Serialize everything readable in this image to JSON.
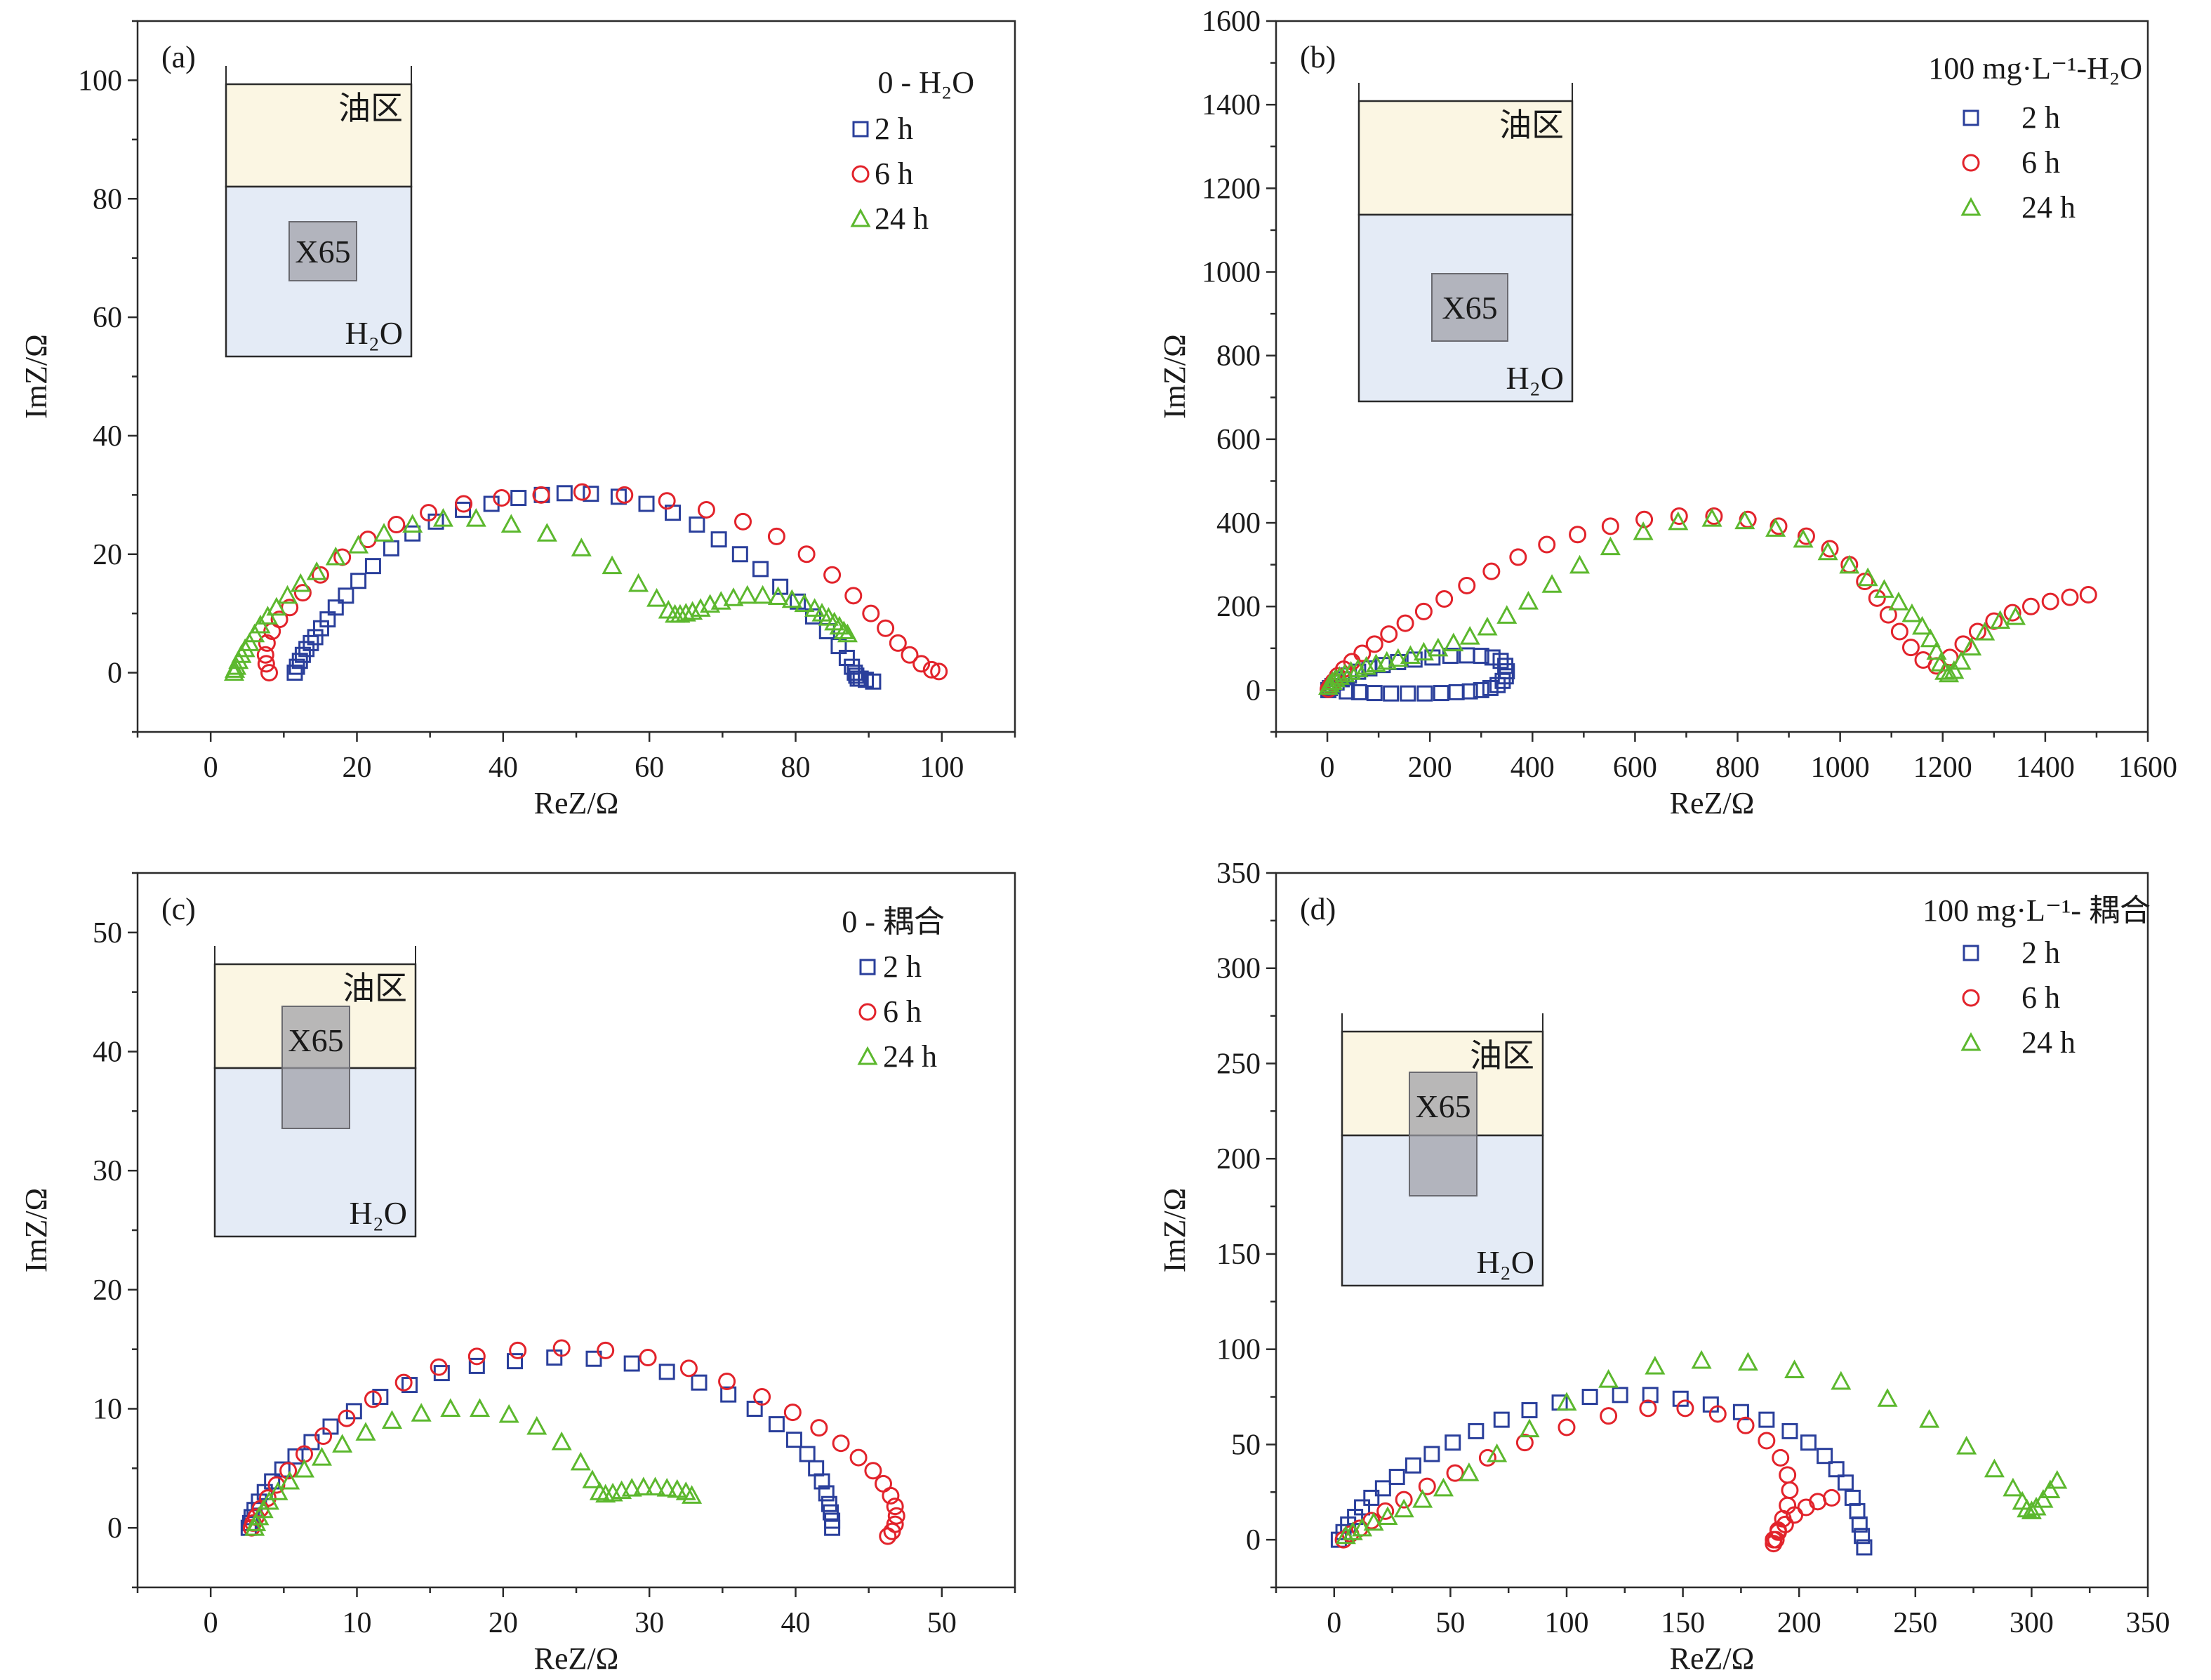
{
  "colors": {
    "s2h": "#2a3f9b",
    "s6h": "#e2232b",
    "s24h": "#5cb82e",
    "oil_fill": "#fbf6e3",
    "water_fill": "#e4ebf6",
    "x65_fill": "#9e9ea6",
    "frame": "#2b2b2b"
  },
  "chart_data": [
    {
      "id": "a",
      "type": "scatter",
      "panel_label": "(a)",
      "legend_title": "0 - H₂O",
      "xlabel": "ReZ/Ω",
      "ylabel": "ImZ/Ω",
      "xlim": [
        -10,
        110
      ],
      "ylim": [
        -10,
        110
      ],
      "xticks": [
        0,
        20,
        40,
        60,
        80,
        100
      ],
      "yticks": [
        0,
        20,
        40,
        60,
        80,
        100
      ],
      "inset": {
        "oil_label": "油区",
        "specimen_label": "X65",
        "water_label": "H₂O",
        "specimen_in_oil": false
      },
      "series": [
        {
          "name": "2 h",
          "marker": "square",
          "color": "s2h",
          "x": [
            11.5,
            11.8,
            12.2,
            12.6,
            13.1,
            13.7,
            14.3,
            15.1,
            16.0,
            17.1,
            18.5,
            20.2,
            22.2,
            24.7,
            27.6,
            30.8,
            34.5,
            38.4,
            42.1,
            45.3,
            48.4,
            52.0,
            55.8,
            59.6,
            63.2,
            66.5,
            69.5,
            72.4,
            75.2,
            77.9,
            80.3,
            82.4,
            84.3,
            85.9,
            87.0,
            87.7,
            88.1,
            88.3,
            88.5,
            88.9,
            89.6,
            90.6
          ],
          "y": [
            0.0,
            1.0,
            2.0,
            3.0,
            4.0,
            5.0,
            6.0,
            7.5,
            9.0,
            11.0,
            13.0,
            15.5,
            18.0,
            21.0,
            23.5,
            25.5,
            27.5,
            28.5,
            29.5,
            30.0,
            30.3,
            30.2,
            29.7,
            28.5,
            27.0,
            25.0,
            22.5,
            20.0,
            17.5,
            14.5,
            12.0,
            9.5,
            7.0,
            4.5,
            2.5,
            1.0,
            0.0,
            -0.5,
            -1.0,
            -1.0,
            -1.2,
            -1.5
          ]
        },
        {
          "name": "6 h",
          "marker": "circle",
          "color": "s6h",
          "x": [
            8.0,
            7.6,
            7.5,
            7.7,
            8.4,
            9.4,
            10.8,
            12.6,
            15.0,
            18.0,
            21.5,
            25.4,
            29.8,
            34.6,
            39.8,
            45.2,
            50.8,
            56.6,
            62.4,
            67.8,
            72.8,
            77.4,
            81.5,
            85.0,
            87.9,
            90.3,
            92.3,
            94.0,
            95.6,
            97.2,
            98.6,
            99.6
          ],
          "y": [
            0.0,
            1.5,
            3.0,
            5.0,
            7.0,
            9.0,
            11.0,
            13.5,
            16.5,
            19.5,
            22.5,
            25.0,
            27.0,
            28.5,
            29.5,
            30.0,
            30.5,
            30.0,
            29.0,
            27.5,
            25.5,
            23.0,
            20.0,
            16.5,
            13.0,
            10.0,
            7.5,
            5.0,
            3.0,
            1.5,
            0.5,
            0.2
          ]
        },
        {
          "name": "24 h",
          "marker": "triangle",
          "color": "s24h",
          "x": [
            3.2,
            3.3,
            3.5,
            3.8,
            4.2,
            4.7,
            5.3,
            6.0,
            6.8,
            7.8,
            9.0,
            10.5,
            12.3,
            14.5,
            17.1,
            20.2,
            23.7,
            27.6,
            31.8,
            36.3,
            41.1,
            46.0,
            50.7,
            54.9,
            58.5,
            61.0,
            62.6,
            63.5,
            64.2,
            65.0,
            65.9,
            67.0,
            68.3,
            69.8,
            71.5,
            73.4,
            75.5,
            77.6,
            79.5,
            81.2,
            82.6,
            83.6,
            84.5,
            85.3,
            86.0,
            86.6,
            87.1
          ],
          "y": [
            0.0,
            0.5,
            1.0,
            2.0,
            3.0,
            4.0,
            5.0,
            6.5,
            8.0,
            9.5,
            11.0,
            13.0,
            15.0,
            17.0,
            19.5,
            21.5,
            23.5,
            25.0,
            26.0,
            26.0,
            25.0,
            23.5,
            21.0,
            18.0,
            15.0,
            12.5,
            10.5,
            9.8,
            9.8,
            10.0,
            10.3,
            10.8,
            11.5,
            12.0,
            12.6,
            13.0,
            13.0,
            12.8,
            12.3,
            11.6,
            10.8,
            10.0,
            9.3,
            8.5,
            7.8,
            7.0,
            6.5
          ]
        }
      ]
    },
    {
      "id": "b",
      "type": "scatter",
      "panel_label": "(b)",
      "legend_title": "100 mg·L⁻¹-H₂O",
      "xlabel": "ReZ/Ω",
      "ylabel": "ImZ/Ω",
      "xlim": [
        -100,
        1600
      ],
      "ylim": [
        -100,
        1600
      ],
      "xticks": [
        0,
        200,
        400,
        600,
        800,
        1000,
        1200,
        1400,
        1600
      ],
      "yticks": [
        0,
        200,
        400,
        600,
        800,
        1000,
        1200,
        1400,
        1600
      ],
      "inset": {
        "oil_label": "油区",
        "specimen_label": "X65",
        "water_label": "H₂O",
        "specimen_in_oil": false
      },
      "series": [
        {
          "name": "2 h",
          "marker": "square",
          "color": "s2h",
          "x": [
            2,
            5,
            10,
            18,
            28,
            42,
            60,
            82,
            108,
            138,
            170,
            205,
            240,
            272,
            300,
            322,
            338,
            347,
            350,
            348,
            342,
            332,
            318,
            300,
            278,
            252,
            222,
            190,
            157,
            124,
            92,
            62,
            38
          ],
          "y": [
            0,
            5,
            10,
            18,
            26,
            35,
            44,
            52,
            60,
            67,
            73,
            78,
            82,
            83,
            82,
            78,
            70,
            58,
            45,
            33,
            22,
            12,
            5,
            0,
            -3,
            -5,
            -7,
            -8,
            -8,
            -8,
            -7,
            -5,
            -3
          ]
        },
        {
          "name": "6 h",
          "marker": "circle",
          "color": "s6h",
          "x": [
            2,
            6,
            12,
            20,
            32,
            48,
            68,
            92,
            120,
            152,
            188,
            228,
            272,
            320,
            372,
            428,
            488,
            552,
            618,
            686,
            754,
            820,
            880,
            934,
            980,
            1018,
            1048,
            1072,
            1094,
            1116,
            1138,
            1162,
            1188,
            1214,
            1240,
            1268,
            1300,
            1336,
            1372,
            1410,
            1448,
            1484
          ],
          "y": [
            2,
            10,
            20,
            34,
            50,
            68,
            88,
            110,
            134,
            160,
            188,
            218,
            250,
            284,
            318,
            348,
            372,
            392,
            408,
            416,
            416,
            408,
            392,
            368,
            338,
            300,
            260,
            220,
            180,
            140,
            102,
            72,
            58,
            78,
            110,
            140,
            165,
            185,
            200,
            212,
            222,
            228
          ]
        },
        {
          "name": "24 h",
          "marker": "triangle",
          "color": "s24h",
          "x": [
            2,
            5,
            10,
            16,
            24,
            34,
            46,
            60,
            76,
            95,
            116,
            138,
            162,
            188,
            216,
            246,
            278,
            312,
            350,
            392,
            438,
            492,
            552,
            616,
            684,
            750,
            814,
            874,
            928,
            976,
            1018,
            1054,
            1086,
            1114,
            1140,
            1160,
            1176,
            1188,
            1196,
            1204,
            1212,
            1222,
            1236,
            1256,
            1282,
            1312,
            1342
          ],
          "y": [
            8,
            14,
            20,
            26,
            32,
            38,
            44,
            50,
            56,
            62,
            68,
            75,
            82,
            90,
            100,
            112,
            128,
            150,
            178,
            212,
            252,
            298,
            342,
            378,
            402,
            410,
            404,
            386,
            360,
            330,
            298,
            268,
            240,
            210,
            182,
            152,
            122,
            92,
            64,
            44,
            38,
            46,
            68,
            102,
            138,
            166,
            175
          ]
        }
      ]
    },
    {
      "id": "c",
      "type": "scatter",
      "panel_label": "(c)",
      "legend_title": "0 - 耦合",
      "xlabel": "ReZ/Ω",
      "ylabel": "ImZ/Ω",
      "xlim": [
        -5,
        55
      ],
      "ylim": [
        -5,
        55
      ],
      "xticks": [
        0,
        10,
        20,
        30,
        40,
        50
      ],
      "yticks": [
        0,
        10,
        20,
        30,
        40,
        50
      ],
      "inset": {
        "oil_label": "油区",
        "specimen_label": "X65",
        "water_label": "H₂O",
        "specimen_in_oil": true
      },
      "series": [
        {
          "name": "2 h",
          "marker": "square",
          "color": "s2h",
          "x": [
            2.6,
            2.7,
            2.8,
            3.0,
            3.3,
            3.7,
            4.2,
            4.9,
            5.8,
            6.9,
            8.2,
            9.8,
            11.6,
            13.6,
            15.8,
            18.2,
            20.8,
            23.5,
            26.2,
            28.8,
            31.2,
            33.4,
            35.4,
            37.2,
            38.7,
            39.9,
            40.8,
            41.4,
            41.8,
            42.1,
            42.3,
            42.4,
            42.5,
            42.5
          ],
          "y": [
            0.0,
            0.4,
            0.9,
            1.5,
            2.2,
            3.0,
            3.9,
            4.9,
            6.0,
            7.2,
            8.5,
            9.8,
            11.0,
            12.0,
            13.0,
            13.6,
            14.0,
            14.3,
            14.2,
            13.8,
            13.1,
            12.2,
            11.2,
            10.0,
            8.7,
            7.4,
            6.2,
            5.0,
            3.9,
            2.9,
            2.0,
            1.3,
            0.6,
            0.0
          ]
        },
        {
          "name": "6 h",
          "marker": "circle",
          "color": "s6h",
          "x": [
            2.8,
            2.9,
            3.1,
            3.4,
            3.9,
            4.5,
            5.3,
            6.4,
            7.7,
            9.3,
            11.1,
            13.2,
            15.6,
            18.2,
            21.0,
            24.0,
            27.0,
            29.9,
            32.7,
            35.3,
            37.7,
            39.8,
            41.6,
            43.1,
            44.3,
            45.3,
            46.0,
            46.5,
            46.8,
            46.9,
            46.8,
            46.6,
            46.3
          ],
          "y": [
            0.0,
            0.4,
            0.9,
            1.6,
            2.5,
            3.6,
            4.8,
            6.2,
            7.7,
            9.2,
            10.8,
            12.2,
            13.5,
            14.4,
            14.9,
            15.1,
            14.9,
            14.3,
            13.4,
            12.3,
            11.0,
            9.7,
            8.4,
            7.1,
            5.9,
            4.8,
            3.7,
            2.7,
            1.8,
            1.0,
            0.3,
            -0.3,
            -0.7
          ]
        },
        {
          "name": "24 h",
          "marker": "triangle",
          "color": "s24h",
          "x": [
            3.0,
            3.1,
            3.3,
            3.6,
            4.0,
            4.6,
            5.4,
            6.4,
            7.6,
            9.0,
            10.6,
            12.4,
            14.4,
            16.4,
            18.4,
            20.4,
            22.3,
            24.0,
            25.3,
            26.1,
            26.6,
            27.0,
            27.5,
            28.1,
            28.8,
            29.6,
            30.4,
            31.2,
            31.9,
            32.5,
            32.9
          ],
          "y": [
            0.0,
            0.4,
            0.9,
            1.5,
            2.2,
            3.0,
            3.9,
            4.9,
            5.9,
            7.0,
            8.0,
            9.0,
            9.6,
            10.0,
            10.0,
            9.5,
            8.5,
            7.2,
            5.5,
            4.0,
            3.0,
            2.8,
            2.9,
            3.1,
            3.3,
            3.4,
            3.4,
            3.3,
            3.2,
            3.0,
            2.7
          ]
        }
      ]
    },
    {
      "id": "d",
      "type": "scatter",
      "panel_label": "(d)",
      "legend_title": "100 mg·L⁻¹- 耦合",
      "xlabel": "ReZ/Ω",
      "ylabel": "ImZ/Ω",
      "xlim": [
        -25,
        350
      ],
      "ylim": [
        -25,
        350
      ],
      "xticks": [
        0,
        50,
        100,
        150,
        200,
        250,
        300,
        350
      ],
      "yticks": [
        0,
        50,
        100,
        150,
        200,
        250,
        300,
        350
      ],
      "inset": {
        "oil_label": "油区",
        "specimen_label": "X65",
        "water_label": "H₂O",
        "specimen_in_oil": true
      },
      "series": [
        {
          "name": "2 h",
          "marker": "square",
          "color": "s2h",
          "x": [
            2,
            4,
            6,
            9,
            12,
            16,
            21,
            27,
            34,
            42,
            51,
            61,
            72,
            84,
            97,
            110,
            123,
            136,
            149,
            162,
            175,
            186,
            196,
            204,
            211,
            216,
            220,
            223,
            225,
            226,
            227,
            228
          ],
          "y": [
            0,
            4,
            8,
            12,
            17,
            22,
            27,
            33,
            39,
            45,
            51,
            57,
            63,
            68,
            72,
            75,
            76,
            76,
            74,
            71,
            67,
            63,
            57,
            51,
            44,
            37,
            30,
            22,
            15,
            8,
            2,
            -4
          ]
        },
        {
          "name": "6 h",
          "marker": "circle",
          "color": "s6h",
          "x": [
            4,
            7,
            11,
            16,
            22,
            30,
            40,
            52,
            66,
            82,
            100,
            118,
            135,
            151,
            165,
            177,
            186,
            192,
            195,
            196,
            195,
            193,
            191,
            190,
            189,
            189,
            191,
            194,
            198,
            203,
            208,
            214
          ],
          "y": [
            0,
            3,
            6,
            10,
            15,
            21,
            28,
            35,
            43,
            51,
            59,
            65,
            69,
            69,
            66,
            60,
            52,
            43,
            34,
            26,
            18,
            11,
            5,
            0,
            -2,
            0,
            4,
            8,
            13,
            17,
            20,
            22
          ]
        },
        {
          "name": "24 h",
          "marker": "triangle",
          "color": "s24h",
          "x": [
            5,
            8,
            12,
            17,
            23,
            30,
            38,
            47,
            58,
            70,
            84,
            100,
            118,
            138,
            158,
            178,
            198,
            218,
            238,
            256,
            272,
            284,
            292,
            296,
            298,
            300,
            302,
            305,
            308,
            311
          ],
          "y": [
            2,
            4,
            6,
            9,
            12,
            16,
            21,
            27,
            35,
            45,
            58,
            72,
            84,
            91,
            94,
            93,
            89,
            83,
            74,
            63,
            49,
            37,
            27,
            20,
            16,
            15,
            17,
            21,
            26,
            31
          ]
        }
      ]
    }
  ]
}
